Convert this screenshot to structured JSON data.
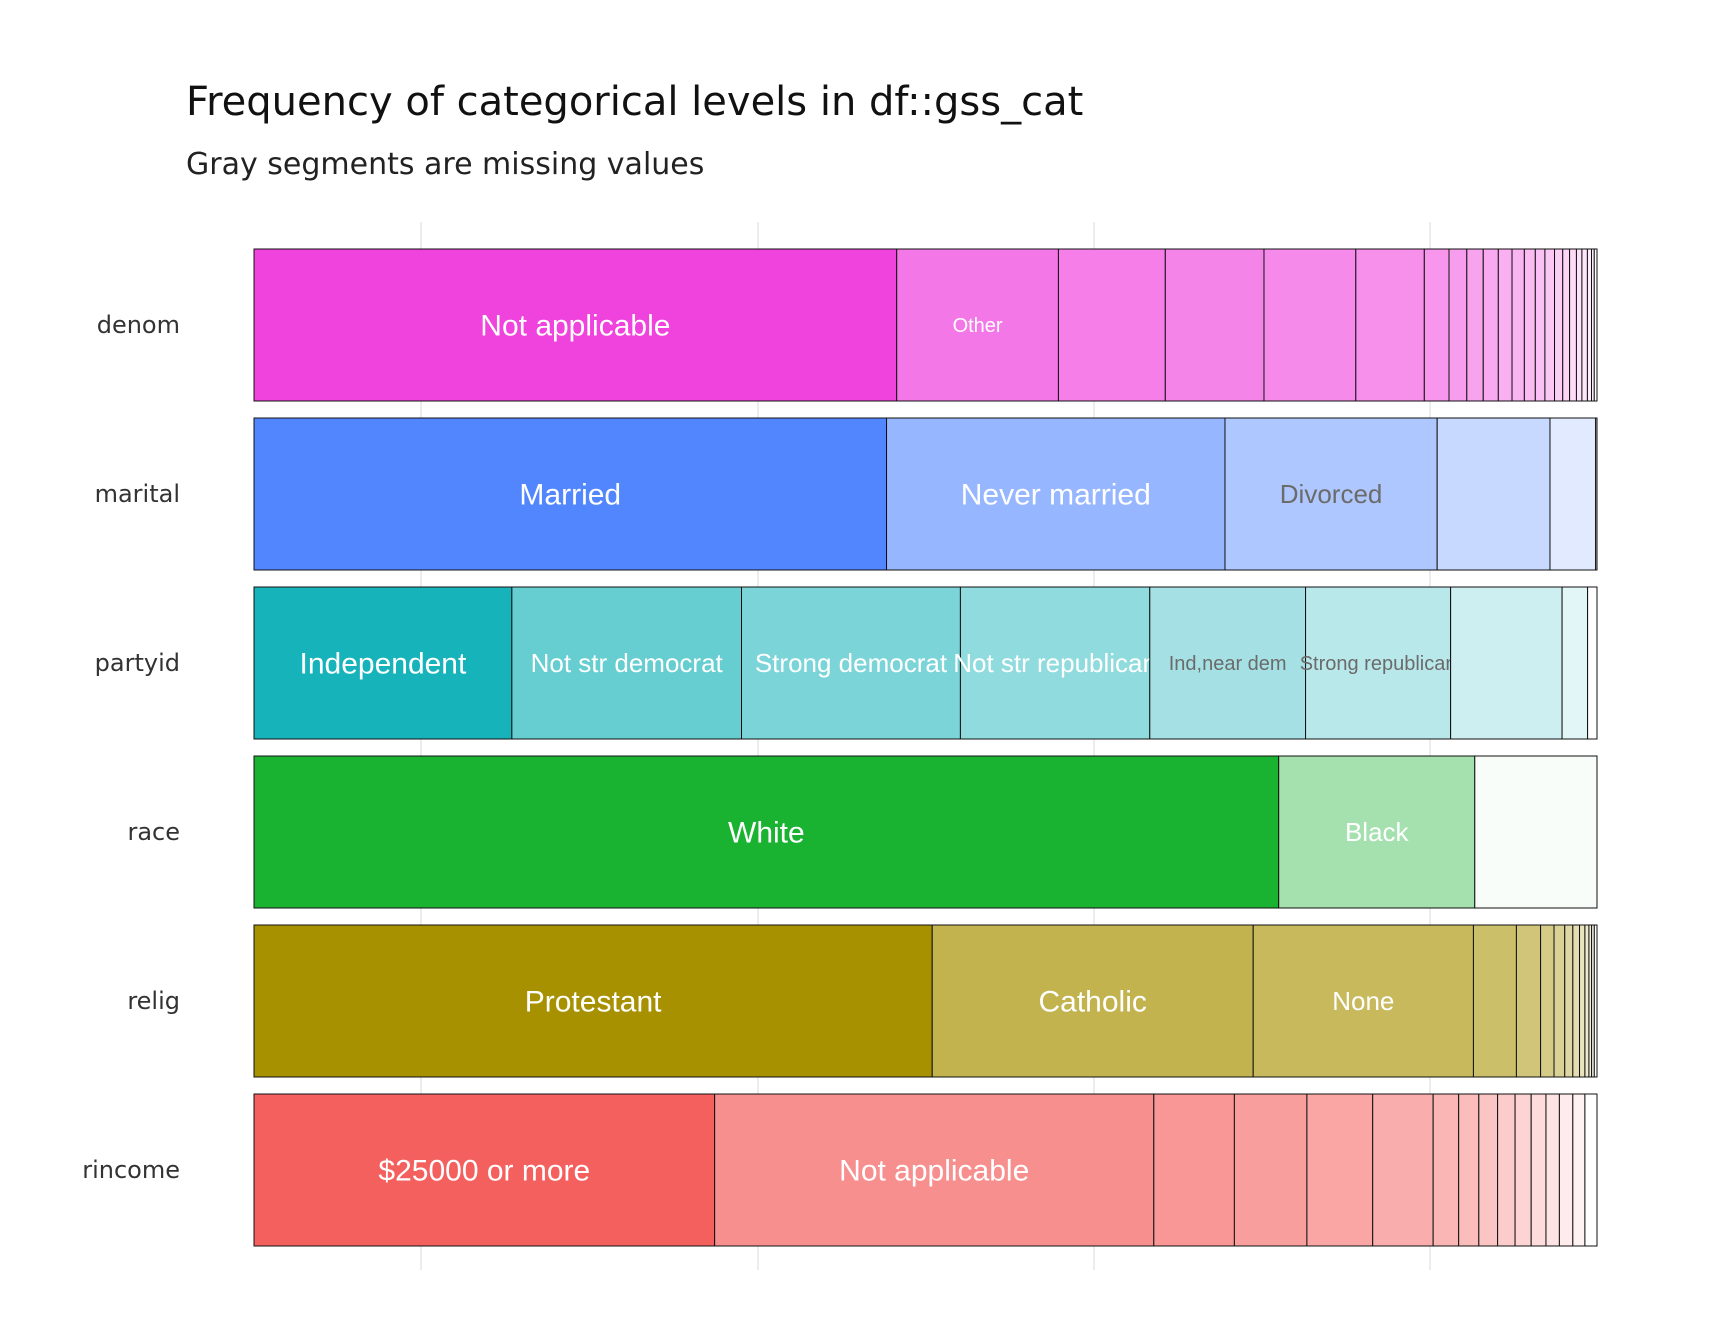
{
  "chart_data": {
    "type": "bar",
    "orientation": "horizontal",
    "stacked": "proportion",
    "title": "Frequency of categorical levels in df::gss_cat",
    "subtitle": "Gray segments are missing values",
    "xlabel": "",
    "ylabel": "",
    "xlim": [
      0,
      1
    ],
    "grid": true,
    "legend": "none",
    "categories": [
      "denom",
      "marital",
      "partyid",
      "race",
      "relig",
      "rincome"
    ],
    "series": [
      {
        "variable": "denom",
        "color": "#F042DD",
        "segments": [
          {
            "label": "Not applicable",
            "value": 0.469
          },
          {
            "label": "Other",
            "value": 0.118
          },
          {
            "label": "",
            "value": 0.078
          },
          {
            "label": "",
            "value": 0.072
          },
          {
            "label": "",
            "value": 0.067
          },
          {
            "label": "",
            "value": 0.05
          },
          {
            "label": "",
            "value": 0.018
          },
          {
            "label": "",
            "value": 0.013
          },
          {
            "label": "",
            "value": 0.012
          },
          {
            "label": "",
            "value": 0.011
          },
          {
            "label": "",
            "value": 0.01
          },
          {
            "label": "",
            "value": 0.009
          },
          {
            "label": "",
            "value": 0.008
          },
          {
            "label": "",
            "value": 0.007
          },
          {
            "label": "",
            "value": 0.007
          },
          {
            "label": "",
            "value": 0.006
          },
          {
            "label": "",
            "value": 0.005
          },
          {
            "label": "",
            "value": 0.005
          },
          {
            "label": "",
            "value": 0.004
          },
          {
            "label": "",
            "value": 0.004
          },
          {
            "label": "",
            "value": 0.003
          },
          {
            "label": "",
            "value": 0.002
          },
          {
            "label": "",
            "value": 0.002
          }
        ]
      },
      {
        "variable": "marital",
        "color": "#5286FF",
        "segments": [
          {
            "label": "Married",
            "value": 0.471
          },
          {
            "label": "Never married",
            "value": 0.252
          },
          {
            "label": "Divorced",
            "value": 0.158
          },
          {
            "label": "",
            "value": 0.084
          },
          {
            "label": "",
            "value": 0.034
          },
          {
            "label": "",
            "value": 0.001
          }
        ]
      },
      {
        "variable": "partyid",
        "color": "#17B3BA",
        "segments": [
          {
            "label": "Independent",
            "value": 0.192
          },
          {
            "label": "Not str democrat",
            "value": 0.171
          },
          {
            "label": "Strong democrat",
            "value": 0.163
          },
          {
            "label": "Not str republican",
            "value": 0.141
          },
          {
            "label": "Ind,near dem",
            "value": 0.116
          },
          {
            "label": "Strong republican",
            "value": 0.108
          },
          {
            "label": "",
            "value": 0.083
          },
          {
            "label": "",
            "value": 0.019
          },
          {
            "label": "",
            "value": 0.007
          }
        ]
      },
      {
        "variable": "race",
        "color": "#19B331",
        "segments": [
          {
            "label": "White",
            "value": 0.763
          },
          {
            "label": "Black",
            "value": 0.146
          },
          {
            "label": "",
            "value": 0.091
          }
        ]
      },
      {
        "variable": "relig",
        "color": "#A79100",
        "segments": [
          {
            "label": "Protestant",
            "value": 0.505
          },
          {
            "label": "Catholic",
            "value": 0.239
          },
          {
            "label": "None",
            "value": 0.164
          },
          {
            "label": "",
            "value": 0.032
          },
          {
            "label": "",
            "value": 0.018
          },
          {
            "label": "",
            "value": 0.01
          },
          {
            "label": "",
            "value": 0.008
          },
          {
            "label": "",
            "value": 0.006
          },
          {
            "label": "",
            "value": 0.005
          },
          {
            "label": "",
            "value": 0.004
          },
          {
            "label": "",
            "value": 0.003
          },
          {
            "label": "",
            "value": 0.002
          },
          {
            "label": "",
            "value": 0.002
          },
          {
            "label": "",
            "value": 0.002
          }
        ]
      },
      {
        "variable": "rincome",
        "color": "#F4605E",
        "segments": [
          {
            "label": "$25000 or more",
            "value": 0.343
          },
          {
            "label": "Not applicable",
            "value": 0.327
          },
          {
            "label": "",
            "value": 0.06
          },
          {
            "label": "",
            "value": 0.054
          },
          {
            "label": "",
            "value": 0.049
          },
          {
            "label": "",
            "value": 0.045
          },
          {
            "label": "",
            "value": 0.019
          },
          {
            "label": "",
            "value": 0.015
          },
          {
            "label": "",
            "value": 0.014
          },
          {
            "label": "",
            "value": 0.013
          },
          {
            "label": "",
            "value": 0.012
          },
          {
            "label": "",
            "value": 0.011
          },
          {
            "label": "",
            "value": 0.01
          },
          {
            "label": "",
            "value": 0.01
          },
          {
            "label": "",
            "value": 0.009
          },
          {
            "label": "",
            "value": 0.009
          }
        ]
      }
    ]
  }
}
